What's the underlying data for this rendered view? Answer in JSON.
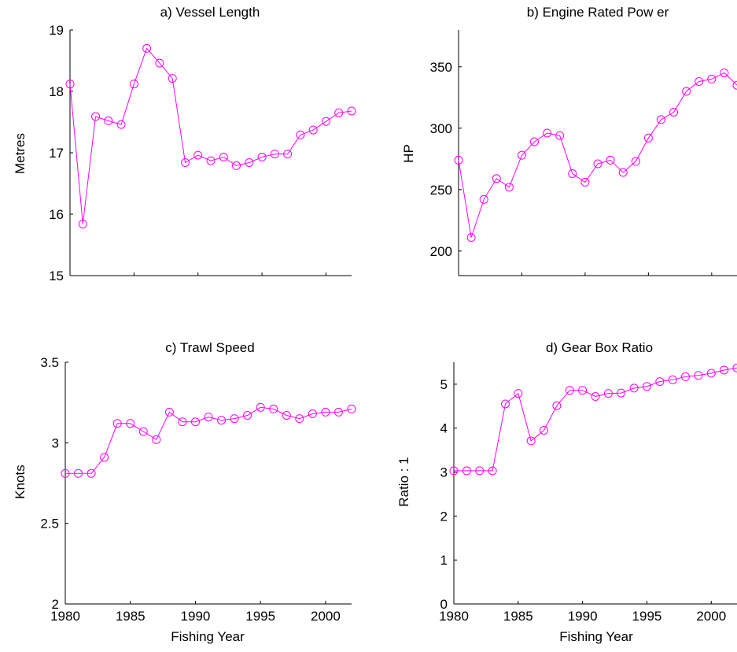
{
  "colors": {
    "series": "#FF00FF",
    "axis": "#000000",
    "background": "#FFFFFF"
  },
  "chart_data": [
    {
      "type": "line",
      "title": "a) Vessel Length",
      "xlabel": "",
      "ylabel": "Metres",
      "xlim": [
        1980,
        2002
      ],
      "ylim": [
        15,
        19
      ],
      "xticks": [],
      "yticks": [
        15,
        16,
        17,
        18,
        19
      ],
      "grid": false,
      "marker": "open-circle",
      "x": [
        1980,
        1981,
        1982,
        1983,
        1984,
        1985,
        1986,
        1987,
        1988,
        1989,
        1990,
        1991,
        1992,
        1993,
        1994,
        1995,
        1996,
        1997,
        1998,
        1999,
        2000,
        2001,
        2002
      ],
      "series": [
        {
          "values": [
            18.12,
            15.84,
            17.59,
            17.52,
            17.46,
            18.12,
            18.7,
            18.46,
            18.21,
            16.84,
            16.96,
            16.87,
            16.93,
            16.79,
            16.84,
            16.93,
            16.98,
            16.98,
            17.29,
            17.37,
            17.51,
            17.65,
            17.68
          ]
        }
      ]
    },
    {
      "type": "line",
      "title": "b) Engine Rated Pow er",
      "xlabel": "",
      "ylabel": "HP",
      "xlim": [
        1980,
        2002
      ],
      "ylim": [
        180,
        380
      ],
      "xticks": [],
      "yticks": [
        200,
        250,
        300,
        350
      ],
      "grid": false,
      "marker": "open-circle",
      "x": [
        1980,
        1981,
        1982,
        1983,
        1984,
        1985,
        1986,
        1987,
        1988,
        1989,
        1990,
        1991,
        1992,
        1993,
        1994,
        1995,
        1996,
        1997,
        1998,
        1999,
        2000,
        2001,
        2002
      ],
      "series": [
        {
          "values": [
            274,
            211,
            242,
            259,
            252,
            278,
            289,
            296,
            294,
            263,
            256,
            271,
            274,
            264,
            273,
            292,
            307,
            313,
            330,
            338,
            340,
            345,
            335
          ]
        }
      ]
    },
    {
      "type": "line",
      "title": "c) Trawl Speed",
      "xlabel": "Fishing Year",
      "ylabel": "Knots",
      "xlim": [
        1980,
        2002
      ],
      "ylim": [
        2,
        3.5
      ],
      "xticks": [
        1980,
        1985,
        1990,
        1995,
        2000
      ],
      "yticks": [
        2,
        2.5,
        3,
        3.5
      ],
      "grid": false,
      "marker": "open-circle",
      "x": [
        1980,
        1981,
        1982,
        1983,
        1984,
        1985,
        1986,
        1987,
        1988,
        1989,
        1990,
        1991,
        1992,
        1993,
        1994,
        1995,
        1996,
        1997,
        1998,
        1999,
        2000,
        2001,
        2002
      ],
      "series": [
        {
          "values": [
            2.81,
            2.81,
            2.81,
            2.91,
            3.12,
            3.12,
            3.07,
            3.02,
            3.19,
            3.13,
            3.13,
            3.16,
            3.14,
            3.15,
            3.17,
            3.22,
            3.21,
            3.17,
            3.15,
            3.18,
            3.19,
            3.19,
            3.21
          ]
        }
      ]
    },
    {
      "type": "line",
      "title": "d) Gear Box Ratio",
      "xlabel": "Fishing Year",
      "ylabel": "Ratio : 1",
      "xlim": [
        1980,
        2002
      ],
      "ylim": [
        0,
        5.5
      ],
      "xticks": [
        1980,
        1985,
        1990,
        1995,
        2000
      ],
      "yticks": [
        0,
        1,
        2,
        3,
        4,
        5
      ],
      "grid": false,
      "marker": "open-circle",
      "x": [
        1980,
        1981,
        1982,
        1983,
        1984,
        1985,
        1986,
        1987,
        1988,
        1989,
        1990,
        1991,
        1992,
        1993,
        1994,
        1995,
        1996,
        1997,
        1998,
        1999,
        2000,
        2001,
        2002
      ],
      "series": [
        {
          "values": [
            3.03,
            3.03,
            3.03,
            3.03,
            4.55,
            4.79,
            3.71,
            3.95,
            4.51,
            4.86,
            4.86,
            4.72,
            4.79,
            4.8,
            4.91,
            4.95,
            5.06,
            5.1,
            5.17,
            5.2,
            5.25,
            5.32,
            5.37
          ]
        }
      ]
    }
  ]
}
